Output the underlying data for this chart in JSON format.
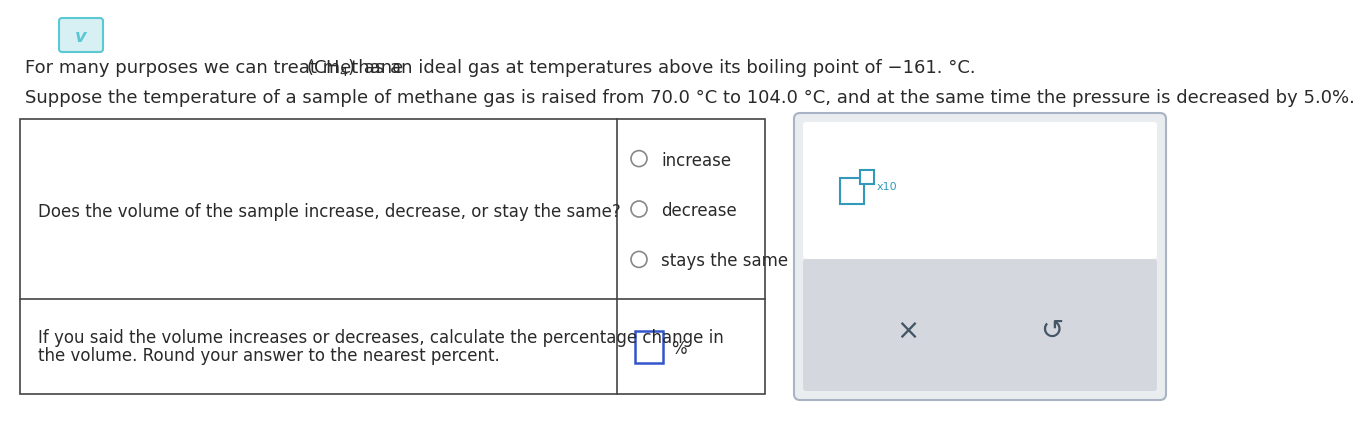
{
  "bg_color": "#ffffff",
  "chevron_color": "#5bc8d4",
  "chevron_bg": "#d6f0f4",
  "text_color": "#2a2a2a",
  "table_border_color": "#444444",
  "radio_color": "#888888",
  "input_box_color": "#3355cc",
  "panel_bg": "#eaedf0",
  "panel_border": "#a8b4c4",
  "panel_top_bg": "#ffffff",
  "icon_color": "#3399bb",
  "btn_color": "#445566",
  "line1_pre": "For many purposes we can treat methane ",
  "line1_post": " as an ideal gas at temperatures above its boiling point of −161. °C.",
  "line2": "Suppose the temperature of a sample of methane gas is raised from 70.0 °C to 104.0 °C, and at the same time the pressure is decreased by 5.0%.",
  "q1_text": "Does the volume of the sample increase, decrease, or stay the same?",
  "q2a": "If you said the volume increases or decreases, calculate the percentage change in",
  "q2b": "the volume. Round your answer to the nearest percent.",
  "radio_options": [
    "increase",
    "decrease",
    "stays the same"
  ],
  "percent_label": "%",
  "x10_label": "x10",
  "fontsize_main": 13,
  "fontsize_table": 12
}
